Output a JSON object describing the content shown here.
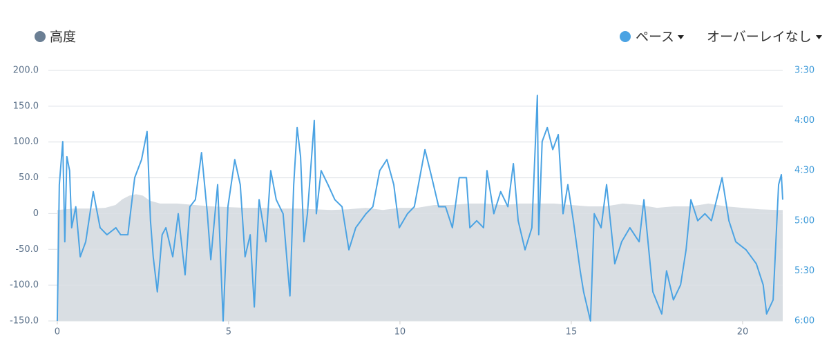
{
  "chart_data": {
    "type": "area-line",
    "overlay_label": "オーバーレイなし",
    "xlim": [
      -0.26,
      21.17
    ],
    "xticks": [
      0,
      5,
      10,
      15,
      20
    ],
    "ylim": [
      -150,
      200
    ],
    "yticks": [
      {
        "value": -150,
        "label": "-150.0"
      },
      {
        "value": -100,
        "label": "-100.0"
      },
      {
        "value": -50,
        "label": "-50.0"
      },
      0,
      {
        "value": 50,
        "label": "50.0"
      },
      {
        "value": 100,
        "label": "100.0"
      },
      {
        "value": 150,
        "label": "150.0"
      },
      {
        "value": 200,
        "label": "200.0"
      }
    ],
    "y2lim": [
      6,
      3.5
    ],
    "y2ticks": [
      {
        "value": 3.5,
        "label": "3:30"
      },
      {
        "value": 4,
        "label": "4:00"
      },
      {
        "value": 4.5,
        "label": "4:30"
      },
      {
        "value": 5,
        "label": "5:00"
      },
      {
        "value": 5.5,
        "label": "5:30"
      },
      {
        "value": 6,
        "label": "6:00"
      }
    ],
    "grid": true,
    "series": [
      {
        "name": "高度",
        "color": "#6b7f94",
        "fill": "#d9dee3",
        "kind": "area",
        "x": [
          0,
          0.5,
          1,
          1.4,
          1.7,
          1.9,
          2.1,
          2.3,
          2.5,
          2.7,
          3.0,
          3.5,
          4,
          4.5,
          5,
          5.5,
          6,
          6.5,
          7,
          7.5,
          8,
          8.5,
          9,
          9.5,
          10,
          10.5,
          11,
          11.5,
          12,
          12.5,
          13,
          13.5,
          14,
          14.5,
          15,
          15.5,
          16,
          16.5,
          17,
          17.5,
          18,
          18.5,
          19,
          19.5,
          20,
          20.5,
          21,
          21.17
        ],
        "values": [
          5,
          7,
          7,
          8,
          12,
          20,
          25,
          27,
          25,
          18,
          14,
          14,
          12,
          10,
          9,
          8,
          8,
          7,
          7,
          6,
          5,
          6,
          8,
          5,
          8,
          8,
          12,
          12,
          14,
          14,
          12,
          14,
          14,
          14,
          12,
          10,
          10,
          14,
          12,
          8,
          10,
          10,
          14,
          10,
          8,
          6,
          5,
          5
        ]
      },
      {
        "name": "ペース",
        "color": "#4ba3e3",
        "kind": "line",
        "axis": "y2",
        "x": [
          0,
          0.06,
          0.16,
          0.22,
          0.28,
          0.36,
          0.42,
          0.54,
          0.67,
          0.83,
          1.05,
          1.25,
          1.45,
          1.71,
          1.85,
          2.06,
          2.26,
          2.46,
          2.62,
          2.72,
          2.8,
          2.92,
          3.06,
          3.17,
          3.37,
          3.53,
          3.73,
          3.87,
          4.03,
          4.21,
          4.38,
          4.48,
          4.68,
          4.84,
          4.98,
          5.18,
          5.34,
          5.48,
          5.63,
          5.75,
          5.89,
          6.09,
          6.23,
          6.39,
          6.59,
          6.79,
          6.9,
          7.0,
          7.1,
          7.2,
          7.3,
          7.5,
          7.56,
          7.7,
          7.9,
          8.1,
          8.31,
          8.51,
          8.71,
          9.01,
          9.21,
          9.41,
          9.62,
          9.82,
          9.98,
          10.22,
          10.42,
          10.73,
          10.93,
          11.13,
          11.33,
          11.53,
          11.73,
          11.94,
          12.04,
          12.24,
          12.44,
          12.54,
          12.74,
          12.94,
          13.15,
          13.31,
          13.45,
          13.65,
          13.85,
          14.01,
          14.05,
          14.15,
          14.3,
          14.46,
          14.62,
          14.76,
          14.9,
          15.06,
          15.26,
          15.36,
          15.56,
          15.67,
          15.87,
          16.03,
          16.27,
          16.47,
          16.71,
          16.98,
          17.12,
          17.38,
          17.64,
          17.78,
          17.98,
          18.19,
          18.35,
          18.49,
          18.69,
          18.9,
          19.09,
          19.4,
          19.6,
          19.8,
          20.1,
          20.4,
          20.6,
          20.7,
          20.89,
          21.05,
          21.13,
          21.17
        ],
        "values": [
          6.0,
          4.64,
          4.21,
          5.21,
          4.36,
          4.5,
          5.07,
          4.86,
          5.36,
          5.21,
          4.71,
          5.07,
          5.14,
          5.07,
          5.14,
          5.14,
          4.57,
          4.39,
          4.11,
          5.0,
          5.36,
          5.71,
          5.14,
          5.07,
          5.36,
          4.93,
          5.54,
          4.86,
          4.79,
          4.32,
          4.93,
          5.39,
          4.64,
          6.0,
          4.86,
          4.39,
          4.64,
          5.36,
          5.14,
          5.86,
          4.79,
          5.21,
          4.5,
          4.79,
          4.93,
          5.75,
          4.64,
          4.07,
          4.36,
          5.21,
          4.93,
          4.0,
          4.93,
          4.5,
          4.64,
          4.79,
          4.86,
          5.29,
          5.07,
          4.93,
          4.86,
          4.5,
          4.39,
          4.64,
          5.07,
          4.93,
          4.86,
          4.29,
          4.57,
          4.86,
          4.86,
          5.07,
          4.57,
          4.57,
          5.07,
          5.0,
          5.07,
          4.5,
          4.93,
          4.71,
          4.86,
          4.43,
          5.0,
          5.29,
          5.07,
          3.75,
          5.14,
          4.21,
          4.07,
          4.29,
          4.14,
          4.93,
          4.64,
          5.0,
          5.5,
          5.71,
          6.0,
          4.93,
          5.07,
          4.64,
          5.43,
          5.21,
          5.07,
          5.21,
          4.79,
          5.71,
          5.93,
          5.5,
          5.79,
          5.64,
          5.29,
          4.79,
          5.0,
          4.93,
          5.0,
          4.57,
          5.0,
          5.21,
          5.29,
          5.43,
          5.64,
          5.93,
          5.79,
          4.64,
          4.54,
          4.79
        ]
      }
    ]
  }
}
